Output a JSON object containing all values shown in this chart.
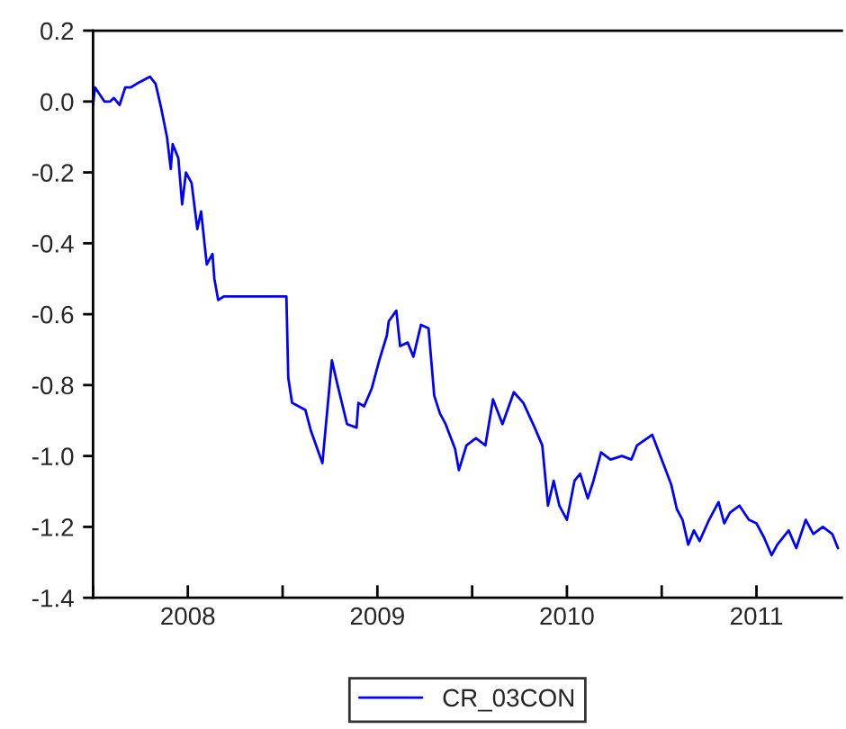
{
  "chart_data": {
    "type": "line",
    "x": [
      2008.0,
      2008.01,
      2008.06,
      2008.09,
      2008.11,
      2008.14,
      2008.17,
      2008.2,
      2008.23,
      2008.3,
      2008.33,
      2008.36,
      2008.39,
      2008.41,
      2008.42,
      2008.45,
      2008.47,
      2008.49,
      2008.52,
      2008.55,
      2008.57,
      2008.6,
      2008.63,
      2008.64,
      2008.66,
      2008.69,
      2009.02,
      2009.03,
      2009.05,
      2009.12,
      2009.15,
      2009.21,
      2009.26,
      2009.29,
      2009.34,
      2009.39,
      2009.4,
      2009.43,
      2009.47,
      2009.51,
      2009.55,
      2009.56,
      2009.6,
      2009.62,
      2009.66,
      2009.69,
      2009.73,
      2009.77,
      2009.8,
      2009.83,
      2009.86,
      2009.91,
      2009.93,
      2009.97,
      2010.02,
      2010.07,
      2010.11,
      2010.16,
      2010.22,
      2010.27,
      2010.33,
      2010.37,
      2010.4,
      2010.43,
      2010.46,
      2010.5,
      2010.54,
      2010.57,
      2010.61,
      2010.64,
      2010.68,
      2010.73,
      2010.79,
      2010.84,
      2010.87,
      2010.95,
      2011.0,
      2011.05,
      2011.08,
      2011.11,
      2011.14,
      2011.17,
      2011.2,
      2011.25,
      2011.3,
      2011.33,
      2011.36,
      2011.41,
      2011.46,
      2011.5,
      2011.54,
      2011.58,
      2011.61,
      2011.67,
      2011.71,
      2011.76,
      2011.8,
      2011.85,
      2011.9,
      2011.93
    ],
    "series": [
      {
        "name": "CR_03CON",
        "color": "#0000ff",
        "values": [
          -0.01,
          0.04,
          0.0,
          0.0,
          0.01,
          -0.01,
          0.04,
          0.04,
          0.05,
          0.07,
          0.05,
          -0.02,
          -0.1,
          -0.19,
          -0.12,
          -0.16,
          -0.29,
          -0.2,
          -0.23,
          -0.36,
          -0.31,
          -0.46,
          -0.43,
          -0.5,
          -0.56,
          -0.55,
          -0.55,
          -0.78,
          -0.85,
          -0.87,
          -0.93,
          -1.02,
          -0.73,
          -0.8,
          -0.91,
          -0.92,
          -0.85,
          -0.86,
          -0.81,
          -0.73,
          -0.66,
          -0.62,
          -0.59,
          -0.69,
          -0.68,
          -0.72,
          -0.63,
          -0.64,
          -0.83,
          -0.88,
          -0.91,
          -0.98,
          -1.04,
          -0.97,
          -0.95,
          -0.97,
          -0.84,
          -0.91,
          -0.82,
          -0.85,
          -0.92,
          -0.97,
          -1.14,
          -1.07,
          -1.14,
          -1.18,
          -1.07,
          -1.05,
          -1.12,
          -1.07,
          -0.99,
          -1.01,
          -1.0,
          -1.01,
          -0.97,
          -0.94,
          -1.01,
          -1.08,
          -1.15,
          -1.18,
          -1.25,
          -1.21,
          -1.24,
          -1.18,
          -1.13,
          -1.19,
          -1.16,
          -1.14,
          -1.18,
          -1.19,
          -1.23,
          -1.28,
          -1.25,
          -1.21,
          -1.26,
          -1.18,
          -1.22,
          -1.2,
          -1.22,
          -1.26
        ]
      }
    ],
    "xlim": [
      2008.0,
      2011.95
    ],
    "xticks": [
      {
        "value": 2008,
        "label": null
      },
      {
        "value": 2008.5,
        "label": "2008"
      },
      {
        "value": 2009,
        "label": null
      },
      {
        "value": 2009.5,
        "label": "2009"
      },
      {
        "value": 2010,
        "label": null
      },
      {
        "value": 2010.5,
        "label": "2010"
      },
      {
        "value": 2011,
        "label": null
      },
      {
        "value": 2011.5,
        "label": "2011"
      }
    ],
    "ylim": [
      -1.4,
      0.2
    ],
    "yticks": [
      {
        "value": -1.4,
        "label": "-1.4"
      },
      {
        "value": -1.2,
        "label": "-1.2"
      },
      {
        "value": -1.0,
        "label": "-1.0"
      },
      {
        "value": -0.8,
        "label": "-0.8"
      },
      {
        "value": -0.6,
        "label": "-0.6"
      },
      {
        "value": -0.4,
        "label": "-0.4"
      },
      {
        "value": -0.2,
        "label": "-0.2"
      },
      {
        "value": 0.0,
        "label": "0.0"
      },
      {
        "value": 0.2,
        "label": "0.2"
      }
    ],
    "grid": false,
    "legend": "bottom",
    "line_style": "solid"
  }
}
